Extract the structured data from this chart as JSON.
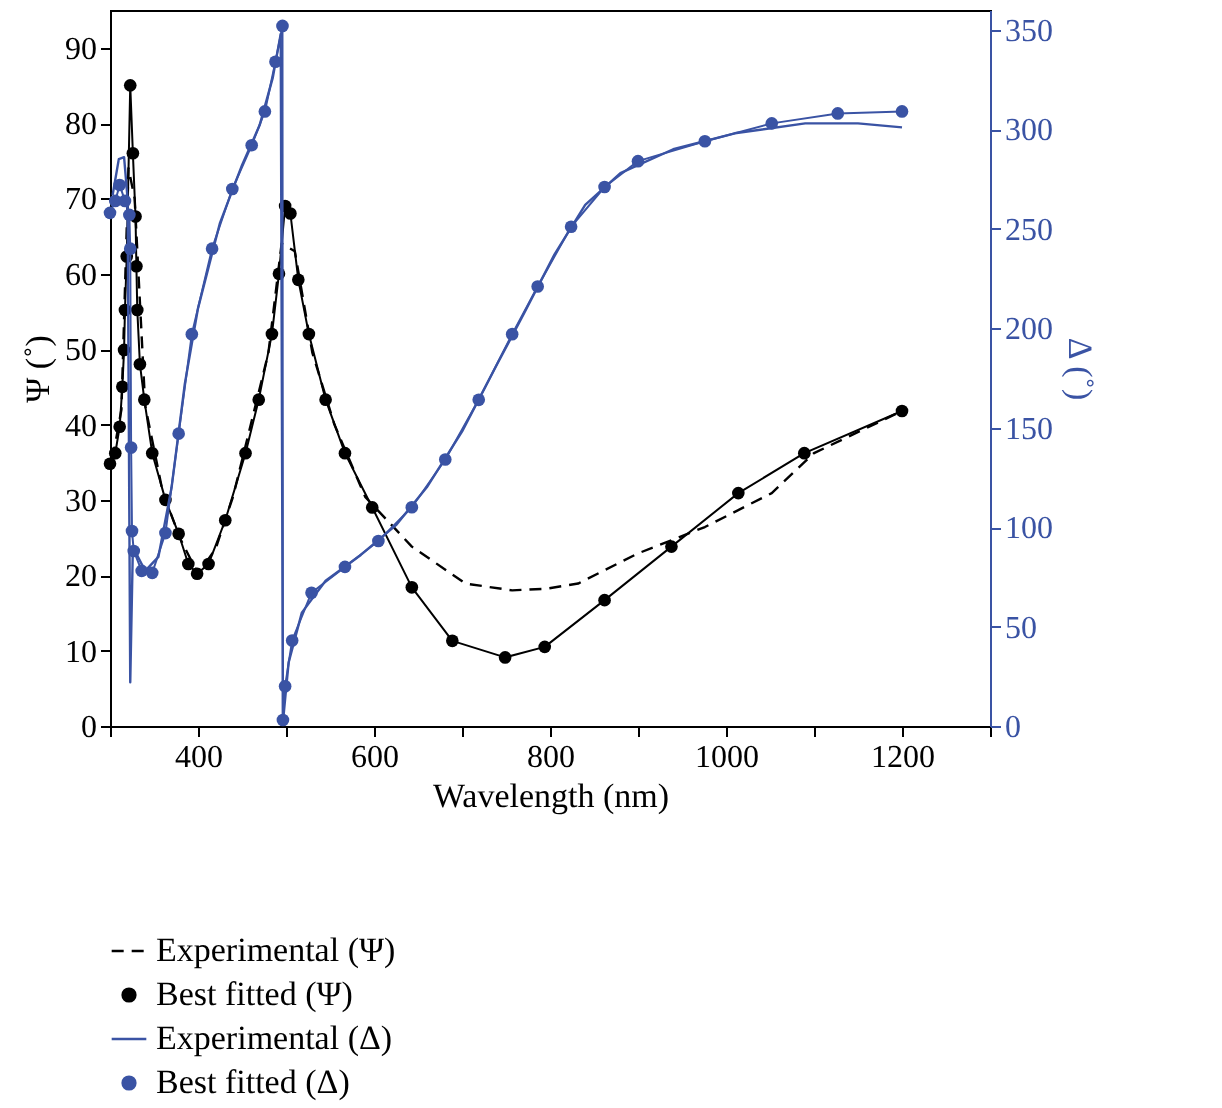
{
  "chart_data": {
    "type": "line",
    "xlabel": "Wavelength (nm)",
    "ylabel": "Ψ (˚)",
    "y2label": "Δ (˚)",
    "xlim": [
      300,
      1300
    ],
    "xticks": [
      {
        "value": 300,
        "label": null
      },
      400,
      {
        "value": 500,
        "label": null
      },
      600,
      {
        "value": 700,
        "label": null
      },
      800,
      {
        "value": 900,
        "label": null
      },
      1000,
      {
        "value": 1100,
        "label": null
      },
      1200,
      {
        "value": 1300,
        "label": null
      }
    ],
    "ylim": [
      0,
      95
    ],
    "yticks": [
      0,
      10,
      20,
      30,
      40,
      50,
      60,
      70,
      80,
      90
    ],
    "y2lim": [
      0,
      360
    ],
    "y2ticks": [
      0,
      50,
      100,
      150,
      200,
      250,
      300,
      350
    ],
    "grid": false,
    "legend": "bottom",
    "series": [
      {
        "name": "Experimental (Ψ)",
        "color": "#000000",
        "line_style": "dashed",
        "marker": "none",
        "x": [
          303,
          313,
          321,
          328,
          340,
          360,
          380,
          400,
          420,
          440,
          460,
          480,
          495,
          510,
          530,
          555,
          590,
          643,
          704,
          757,
          795,
          832,
          900,
          976,
          1052,
          1100,
          1200
        ],
        "values": [
          35.5,
          42,
          74,
          70,
          42.5,
          31,
          24.8,
          20.2,
          23.5,
          30.5,
          40,
          49.5,
          64,
          63,
          49.5,
          40,
          30.4,
          23.8,
          18.9,
          18,
          18.2,
          18.9,
          22.9,
          26.4,
          30.9,
          36.2,
          41.8
        ]
      },
      {
        "name": "Best fitted (Ψ)",
        "color": "#000000",
        "line_style": "solid",
        "marker": "circle",
        "x": [
          300,
          306,
          311,
          314,
          316,
          317,
          319,
          323,
          326,
          329,
          330,
          331,
          334,
          339,
          348,
          363,
          378,
          389,
          399,
          412,
          431,
          454,
          469,
          484,
          492,
          499,
          505,
          514,
          526,
          545,
          567,
          598,
          643,
          689,
          749,
          794,
          862,
          938,
          1014,
          1089,
          1200
        ],
        "values": [
          34.8,
          36.2,
          39.7,
          45,
          49.9,
          55.2,
          62.3,
          85,
          76,
          67.6,
          61,
          55.2,
          48,
          43.3,
          36.2,
          30,
          25.5,
          21.5,
          20.2,
          21.5,
          27.3,
          36.2,
          43.3,
          52,
          60,
          69,
          68,
          59.2,
          52,
          43.3,
          36.2,
          29,
          18.4,
          11.3,
          9.1,
          10.5,
          16.7,
          23.8,
          30.9,
          36.2,
          41.8
        ]
      },
      {
        "name": "Experimental (Δ)",
        "color": "#3a53a4",
        "line_style": "solid",
        "marker": "none",
        "axis": "y2",
        "x": [
          303,
          310,
          316,
          320,
          323,
          326,
          340,
          355,
          370,
          385,
          400,
          425,
          450,
          470,
          485,
          494,
          496.5,
          503,
          518,
          545,
          585,
          625,
          660,
          700,
          740,
          770,
          805,
          840,
          880,
          940,
          1010,
          1090,
          1150,
          1200
        ],
        "values": [
          267,
          285,
          286,
          265,
          22,
          90,
          78,
          85,
          120,
          172,
          210,
          253,
          282,
          302,
          326,
          348,
          2,
          32,
          57,
          73,
          86,
          101,
          120,
          148,
          182,
          207,
          237,
          262,
          278,
          290,
          298,
          303,
          303,
          301
        ]
      },
      {
        "name": "Best fitted (Δ)",
        "color": "#3a53a4",
        "line_style": "solid",
        "marker": "circle",
        "axis": "y2",
        "x": [
          300,
          306,
          311,
          317,
          322,
          323,
          324,
          325,
          327,
          336,
          348,
          363,
          378,
          393,
          416,
          439,
          461,
          476,
          488,
          496,
          496.5,
          499,
          507,
          529,
          567,
          605,
          643,
          681,
          719,
          757,
          786,
          824,
          862,
          900,
          976,
          1052,
          1127,
          1200
        ],
        "values": [
          258,
          264,
          272,
          264,
          257,
          240,
          140,
          98,
          88,
          78,
          77,
          97,
          147,
          197,
          240,
          270,
          292,
          309,
          334,
          352,
          3,
          20,
          43,
          67,
          80,
          93,
          110,
          134,
          164,
          197,
          221,
          251,
          271,
          284,
          294,
          303,
          308,
          309
        ]
      }
    ]
  }
}
